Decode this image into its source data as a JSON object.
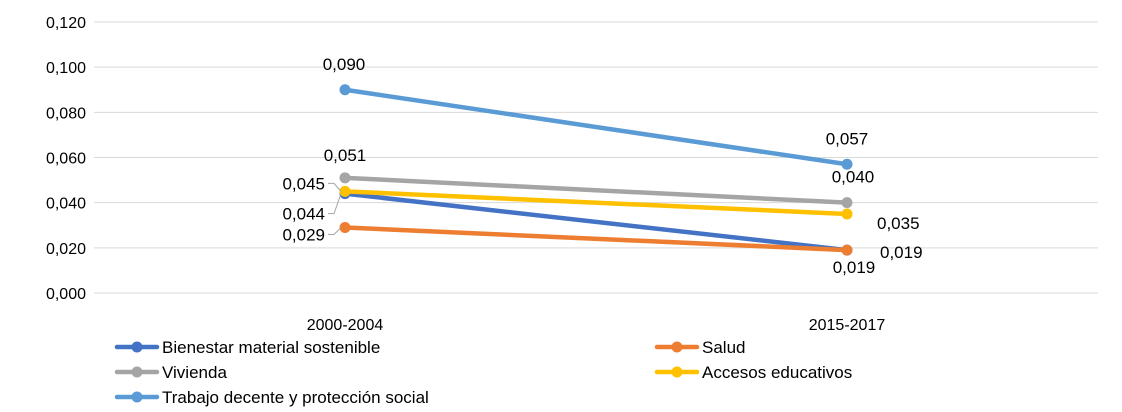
{
  "chart_data": {
    "type": "line",
    "title": "",
    "xlabel": "",
    "ylabel": "",
    "categories": [
      "2000-2004",
      "2015-2017"
    ],
    "ylim": [
      0,
      0.12
    ],
    "yticks": [
      "0,000",
      "0,020",
      "0,040",
      "0,060",
      "0,080",
      "0,100",
      "0,120"
    ],
    "grid": "horizontal",
    "legend_position": "bottom",
    "series": [
      {
        "name": "Bienestar material sostenible",
        "color": "#4472C4",
        "values": [
          0.044,
          0.019
        ],
        "labels": [
          "0,044",
          "0,019"
        ]
      },
      {
        "name": "Salud",
        "color": "#ED7D31",
        "values": [
          0.029,
          0.019
        ],
        "labels": [
          "0,029",
          "0,019"
        ]
      },
      {
        "name": "Vivienda",
        "color": "#A5A5A5",
        "values": [
          0.051,
          0.04
        ],
        "labels": [
          "0,051",
          "0,040"
        ]
      },
      {
        "name": "Accesos educativos",
        "color": "#FFC000",
        "values": [
          0.045,
          0.035
        ],
        "labels": [
          "0,045",
          "0,035"
        ]
      },
      {
        "name": "Trabajo decente y protección social",
        "color": "#5B9BD5",
        "values": [
          0.09,
          0.057
        ],
        "labels": [
          "0,090",
          "0,057"
        ]
      }
    ]
  }
}
